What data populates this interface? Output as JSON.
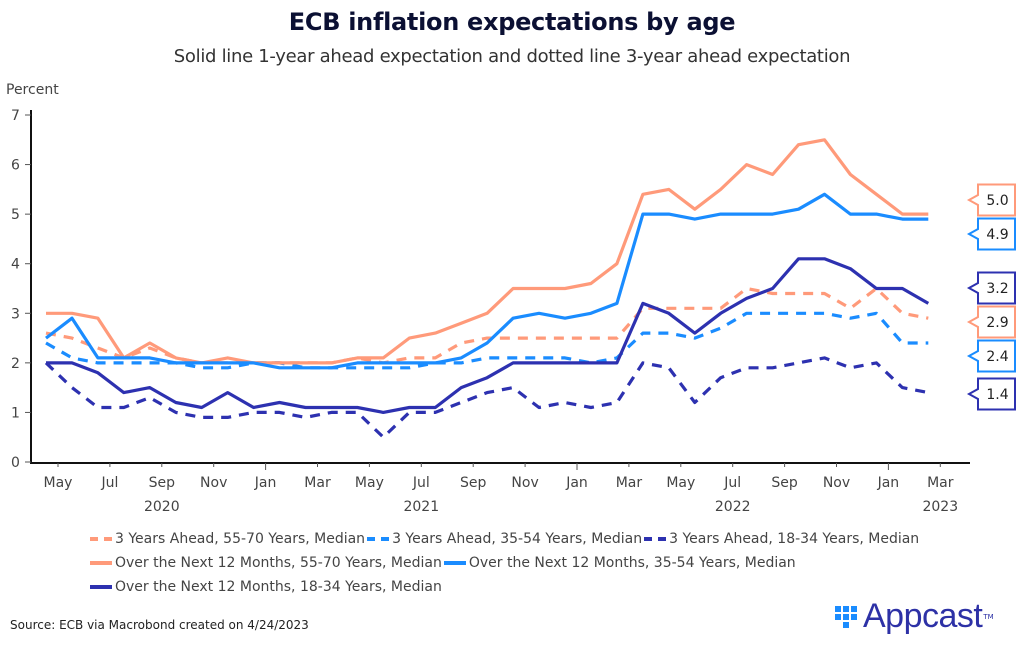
{
  "header": {
    "title": "ECB inflation expectations by age",
    "subtitle": "Solid line 1-year ahead expectation and dotted line 3-year ahead expectation"
  },
  "footer": {
    "source": "Source: ECB via Macrobond created on 4/24/2023",
    "logo_text": "Appcast",
    "logo_tm": "TM"
  },
  "chart_data": {
    "type": "line",
    "title": "ECB inflation expectations by age",
    "subtitle": "Solid line 1-year ahead expectation and dotted line 3-year ahead expectation",
    "xlabel": "",
    "ylabel": "Percent",
    "ylim": [
      0,
      7
    ],
    "yticks": [
      "0",
      "1",
      "2",
      "3",
      "4",
      "5",
      "6",
      "7"
    ],
    "grid": false,
    "legend_position": "bottom",
    "x": [
      "2020-05",
      "2020-06",
      "2020-07",
      "2020-08",
      "2020-09",
      "2020-10",
      "2020-11",
      "2020-12",
      "2021-01",
      "2021-02",
      "2021-03",
      "2021-04",
      "2021-05",
      "2021-06",
      "2021-07",
      "2021-08",
      "2021-09",
      "2021-10",
      "2021-11",
      "2021-12",
      "2022-01",
      "2022-02",
      "2022-03",
      "2022-04",
      "2022-05",
      "2022-06",
      "2022-07",
      "2022-08",
      "2022-09",
      "2022-10",
      "2022-11",
      "2022-12",
      "2023-01",
      "2023-02",
      "2023-03"
    ],
    "xticks": [
      {
        "month": "May",
        "year": "2020",
        "index": 0
      },
      {
        "month": "Jul",
        "year": "",
        "index": 2
      },
      {
        "month": "Sep",
        "year": "",
        "index": 4
      },
      {
        "month": "Nov",
        "year": "",
        "index": 6
      },
      {
        "month": "Jan",
        "year": "",
        "index": 8
      },
      {
        "month": "Mar",
        "year": "",
        "index": 10
      },
      {
        "month": "May",
        "year": "2021",
        "index": 12
      },
      {
        "month": "Jul",
        "year": "",
        "index": 14
      },
      {
        "month": "Sep",
        "year": "",
        "index": 16
      },
      {
        "month": "Nov",
        "year": "",
        "index": 18
      },
      {
        "month": "Jan",
        "year": "",
        "index": 20
      },
      {
        "month": "Mar",
        "year": "",
        "index": 22
      },
      {
        "month": "May",
        "year": "2022",
        "index": 24
      },
      {
        "month": "Jul",
        "year": "",
        "index": 26
      },
      {
        "month": "Sep",
        "year": "",
        "index": 28
      },
      {
        "month": "Nov",
        "year": "",
        "index": 30
      },
      {
        "month": "Jan",
        "year": "",
        "index": 32
      },
      {
        "month": "Mar",
        "year": "2023",
        "index": 34
      }
    ],
    "year_labels": [
      {
        "label": "2020",
        "index": 4
      },
      {
        "label": "2021",
        "index": 14
      },
      {
        "label": "2022",
        "index": 26
      },
      {
        "label": "2023",
        "index": 34
      }
    ],
    "series": [
      {
        "name": "3 Years Ahead, 55-70 Years, Median",
        "color": "#ff9a7a",
        "style": "dashed",
        "values": [
          2.6,
          2.5,
          2.3,
          2.1,
          2.3,
          2.1,
          2.0,
          2.0,
          2.0,
          2.0,
          2.0,
          2.0,
          2.1,
          2.0,
          2.1,
          2.1,
          2.4,
          2.5,
          2.5,
          2.5,
          2.5,
          2.5,
          2.5,
          3.1,
          3.1,
          3.1,
          3.1,
          3.5,
          3.4,
          3.4,
          3.4,
          3.1,
          3.5,
          3.0,
          2.9
        ]
      },
      {
        "name": "3 Years Ahead, 35-54 Years, Median",
        "color": "#1a8cff",
        "style": "dashed",
        "values": [
          2.4,
          2.1,
          2.0,
          2.0,
          2.0,
          2.0,
          1.9,
          1.9,
          2.0,
          2.0,
          1.9,
          1.9,
          1.9,
          1.9,
          1.9,
          2.0,
          2.0,
          2.1,
          2.1,
          2.1,
          2.1,
          2.0,
          2.1,
          2.6,
          2.6,
          2.5,
          2.7,
          3.0,
          3.0,
          3.0,
          3.0,
          2.9,
          3.0,
          2.4,
          2.4
        ]
      },
      {
        "name": "3 Years Ahead, 18-34 Years, Median",
        "color": "#2d31b0",
        "style": "dashed",
        "values": [
          2.0,
          1.5,
          1.1,
          1.1,
          1.3,
          1.0,
          0.9,
          0.9,
          1.0,
          1.0,
          0.9,
          1.0,
          1.0,
          0.5,
          1.0,
          1.0,
          1.2,
          1.4,
          1.5,
          1.1,
          1.2,
          1.1,
          1.2,
          2.0,
          1.9,
          1.2,
          1.7,
          1.9,
          1.9,
          2.0,
          2.1,
          1.9,
          2.0,
          1.5,
          1.4
        ]
      },
      {
        "name": "Over the Next 12 Months, 55-70 Years, Median",
        "color": "#ff9a7a",
        "style": "solid",
        "values": [
          3.0,
          3.0,
          2.9,
          2.1,
          2.4,
          2.1,
          2.0,
          2.1,
          2.0,
          2.0,
          2.0,
          2.0,
          2.1,
          2.1,
          2.5,
          2.6,
          2.8,
          3.0,
          3.5,
          3.5,
          3.5,
          3.6,
          4.0,
          5.4,
          5.5,
          5.1,
          5.5,
          6.0,
          5.8,
          6.4,
          6.5,
          5.8,
          5.4,
          5.0,
          5.0
        ]
      },
      {
        "name": "Over the Next 12 Months, 35-54 Years, Median",
        "color": "#1a8cff",
        "style": "solid",
        "values": [
          2.5,
          2.9,
          2.1,
          2.1,
          2.1,
          2.0,
          2.0,
          2.0,
          2.0,
          1.9,
          1.9,
          1.9,
          2.0,
          2.0,
          2.0,
          2.0,
          2.1,
          2.4,
          2.9,
          3.0,
          2.9,
          3.0,
          3.2,
          5.0,
          5.0,
          4.9,
          5.0,
          5.0,
          5.0,
          5.1,
          5.4,
          5.0,
          5.0,
          4.9,
          4.9
        ]
      },
      {
        "name": "Over the Next 12 Months, 18-34 Years, Median",
        "color": "#2d31b0",
        "style": "solid",
        "values": [
          2.0,
          2.0,
          1.8,
          1.4,
          1.5,
          1.2,
          1.1,
          1.4,
          1.1,
          1.2,
          1.1,
          1.1,
          1.1,
          1.0,
          1.1,
          1.1,
          1.5,
          1.7,
          2.0,
          2.0,
          2.0,
          2.0,
          2.0,
          3.2,
          3.0,
          2.6,
          3.0,
          3.3,
          3.5,
          4.1,
          4.1,
          3.9,
          3.5,
          3.5,
          3.2
        ]
      }
    ],
    "end_labels": [
      {
        "text": "5.0",
        "series": 3
      },
      {
        "text": "4.9",
        "series": 4
      },
      {
        "text": "3.2",
        "series": 5
      },
      {
        "text": "2.9",
        "series": 0
      },
      {
        "text": "2.4",
        "series": 1
      },
      {
        "text": "1.4",
        "series": 2
      }
    ]
  },
  "legend": {
    "rows": [
      [
        0,
        1,
        2
      ],
      [
        3,
        4
      ],
      [
        5
      ]
    ]
  }
}
